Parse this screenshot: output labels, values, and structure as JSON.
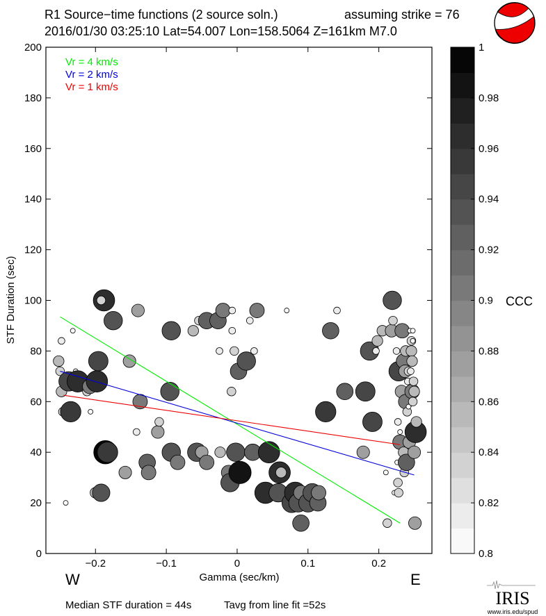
{
  "header": {
    "title": "R1 Source−time functions (2 source soln.)",
    "strike": "assuming strike = 76",
    "event": "2016/01/30 03:25:10  Lat=54.007 Lon=158.5064  Z=161km  M7.0"
  },
  "footer": {
    "median": "Median STF duration = 44s",
    "tavg": "Tavg from line fit =52s",
    "logo_text": "IRIS",
    "logo_url": "www.iris.edu/spud"
  },
  "direction_labels": {
    "west": "W",
    "east": "E"
  },
  "colors": {
    "vr4": "#00ee00",
    "vr2": "#0000dd",
    "vr1": "#ee0000",
    "beachball": "#ee0000"
  },
  "chart_data": {
    "type": "scatter",
    "title": "R1 Source−time functions (2 source soln.)",
    "xlabel": "Gamma (sec/km)",
    "ylabel": "STF Duration (sec)",
    "xlim": [
      -0.27,
      0.275
    ],
    "ylim": [
      0,
      200
    ],
    "xticks": [
      -0.2,
      -0.1,
      0,
      0.1,
      0.2
    ],
    "xtick_labels": [
      "−0.2",
      "−0.1",
      "0",
      "0.1",
      "0.2"
    ],
    "yticks": [
      0,
      20,
      40,
      60,
      80,
      100,
      120,
      140,
      160,
      180,
      200
    ],
    "ytick_labels": [
      "0",
      "20",
      "40",
      "60",
      "80",
      "100",
      "120",
      "140",
      "160",
      "180",
      "200"
    ],
    "legend": [
      {
        "label": "Vr = 4 km/s",
        "color": "#00ee00"
      },
      {
        "label": "Vr = 2 km/s",
        "color": "#0000dd"
      },
      {
        "label": "Vr = 1 km/s",
        "color": "#ee0000"
      }
    ],
    "fit_lines": [
      {
        "name": "Vr = 4 km/s",
        "color": "#00ee00",
        "x": [
          -0.25,
          0.23
        ],
        "y": [
          93.5,
          12
        ]
      },
      {
        "name": "Vr = 2 km/s",
        "color": "#0000dd",
        "x": [
          -0.25,
          0.25
        ],
        "y": [
          72,
          31
        ]
      },
      {
        "name": "Vr = 1 km/s",
        "color": "#ee0000",
        "x": [
          -0.245,
          0.23
        ],
        "y": [
          62.5,
          43
        ]
      }
    ],
    "colorbar": {
      "label": "CCC",
      "min": 0.8,
      "max": 1.0,
      "ticks": [
        0.8,
        0.82,
        0.84,
        0.86,
        0.88,
        0.9,
        0.92,
        0.94,
        0.96,
        0.98,
        1
      ],
      "tick_labels": [
        "0.8",
        "0.82",
        "0.84",
        "0.86",
        "0.88",
        "0.9",
        "0.92",
        "0.94",
        "0.96",
        "0.98",
        "1"
      ]
    },
    "points": [
      {
        "x": -0.242,
        "y": 20,
        "ccc": 0.8
      },
      {
        "x": -0.232,
        "y": 88,
        "ccc": 0.8
      },
      {
        "x": -0.248,
        "y": 84,
        "ccc": 0.82
      },
      {
        "x": -0.252,
        "y": 76,
        "ccc": 0.86
      },
      {
        "x": -0.25,
        "y": 72,
        "ccc": 0.84
      },
      {
        "x": -0.248,
        "y": 64,
        "ccc": 0.86
      },
      {
        "x": -0.246,
        "y": 56,
        "ccc": 0.84
      },
      {
        "x": -0.238,
        "y": 68,
        "ccc": 0.95
      },
      {
        "x": -0.235,
        "y": 56,
        "ccc": 0.96
      },
      {
        "x": -0.228,
        "y": 72,
        "ccc": 0.8
      },
      {
        "x": -0.225,
        "y": 68,
        "ccc": 0.97
      },
      {
        "x": -0.212,
        "y": 64,
        "ccc": 0.84
      },
      {
        "x": -0.208,
        "y": 66,
        "ccc": 0.9
      },
      {
        "x": -0.207,
        "y": 56,
        "ccc": 0.8
      },
      {
        "x": -0.2,
        "y": 24,
        "ccc": 0.86
      },
      {
        "x": -0.198,
        "y": 68,
        "ccc": 0.97
      },
      {
        "x": -0.196,
        "y": 76,
        "ccc": 0.95
      },
      {
        "x": -0.192,
        "y": 24,
        "ccc": 0.93
      },
      {
        "x": -0.188,
        "y": 100,
        "ccc": 0.97
      },
      {
        "x": -0.192,
        "y": 100,
        "ccc": 0.84
      },
      {
        "x": -0.186,
        "y": 40,
        "ccc": 0.99
      },
      {
        "x": -0.183,
        "y": 40,
        "ccc": 0.96
      },
      {
        "x": -0.175,
        "y": 92,
        "ccc": 0.94
      },
      {
        "x": -0.158,
        "y": 32,
        "ccc": 0.88
      },
      {
        "x": -0.152,
        "y": 76,
        "ccc": 0.88
      },
      {
        "x": -0.142,
        "y": 48,
        "ccc": 0.82
      },
      {
        "x": -0.14,
        "y": 96,
        "ccc": 0.88
      },
      {
        "x": -0.137,
        "y": 60,
        "ccc": 0.9
      },
      {
        "x": -0.127,
        "y": 36,
        "ccc": 0.92
      },
      {
        "x": -0.125,
        "y": 32,
        "ccc": 0.9
      },
      {
        "x": -0.112,
        "y": 48,
        "ccc": 0.88
      },
      {
        "x": -0.11,
        "y": 52,
        "ccc": 0.84
      },
      {
        "x": -0.095,
        "y": 64,
        "ccc": 0.94
      },
      {
        "x": -0.093,
        "y": 88,
        "ccc": 0.94
      },
      {
        "x": -0.093,
        "y": 40,
        "ccc": 0.94
      },
      {
        "x": -0.084,
        "y": 36,
        "ccc": 0.9
      },
      {
        "x": -0.062,
        "y": 88,
        "ccc": 0.86
      },
      {
        "x": -0.057,
        "y": 40,
        "ccc": 0.94
      },
      {
        "x": -0.054,
        "y": 92,
        "ccc": 0.84
      },
      {
        "x": -0.05,
        "y": 40,
        "ccc": 0.88
      },
      {
        "x": -0.043,
        "y": 36,
        "ccc": 0.9
      },
      {
        "x": -0.043,
        "y": 92,
        "ccc": 0.92
      },
      {
        "x": -0.03,
        "y": 92,
        "ccc": 0.84
      },
      {
        "x": -0.027,
        "y": 92,
        "ccc": 0.92
      },
      {
        "x": -0.025,
        "y": 80,
        "ccc": 0.82
      },
      {
        "x": -0.024,
        "y": 40,
        "ccc": 0.86
      },
      {
        "x": -0.02,
        "y": 96,
        "ccc": 0.9
      },
      {
        "x": -0.012,
        "y": 32,
        "ccc": 0.9
      },
      {
        "x": -0.01,
        "y": 28,
        "ccc": 0.94
      },
      {
        "x": -0.008,
        "y": 64,
        "ccc": 0.84
      },
      {
        "x": -0.007,
        "y": 96,
        "ccc": 0.82
      },
      {
        "x": -0.007,
        "y": 88,
        "ccc": 0.82
      },
      {
        "x": -0.004,
        "y": 80,
        "ccc": 0.84
      },
      {
        "x": -0.002,
        "y": 40,
        "ccc": 0.94
      },
      {
        "x": 0.002,
        "y": 72,
        "ccc": 0.92
      },
      {
        "x": 0.004,
        "y": 32,
        "ccc": 0.98
      },
      {
        "x": 0.013,
        "y": 76,
        "ccc": 0.94
      },
      {
        "x": 0.018,
        "y": 92,
        "ccc": 0.82
      },
      {
        "x": 0.022,
        "y": 40,
        "ccc": 0.92
      },
      {
        "x": 0.024,
        "y": 80,
        "ccc": 0.82
      },
      {
        "x": 0.028,
        "y": 96,
        "ccc": 0.9
      },
      {
        "x": 0.04,
        "y": 24,
        "ccc": 0.97
      },
      {
        "x": 0.045,
        "y": 40,
        "ccc": 0.97
      },
      {
        "x": 0.058,
        "y": 24,
        "ccc": 0.94
      },
      {
        "x": 0.06,
        "y": 32,
        "ccc": 0.97
      },
      {
        "x": 0.062,
        "y": 32,
        "ccc": 0.86
      },
      {
        "x": 0.07,
        "y": 96,
        "ccc": 0.8
      },
      {
        "x": 0.077,
        "y": 20,
        "ccc": 0.95
      },
      {
        "x": 0.082,
        "y": 24,
        "ccc": 0.97
      },
      {
        "x": 0.086,
        "y": 20,
        "ccc": 0.94
      },
      {
        "x": 0.09,
        "y": 24,
        "ccc": 0.9
      },
      {
        "x": 0.09,
        "y": 12,
        "ccc": 0.92
      },
      {
        "x": 0.1,
        "y": 20,
        "ccc": 0.94
      },
      {
        "x": 0.106,
        "y": 24,
        "ccc": 0.94
      },
      {
        "x": 0.114,
        "y": 20,
        "ccc": 0.92
      },
      {
        "x": 0.115,
        "y": 24,
        "ccc": 0.9
      },
      {
        "x": 0.125,
        "y": 56,
        "ccc": 0.96
      },
      {
        "x": 0.141,
        "y": 96,
        "ccc": 0.82
      },
      {
        "x": 0.132,
        "y": 88,
        "ccc": 0.92
      },
      {
        "x": 0.152,
        "y": 64,
        "ccc": 0.92
      },
      {
        "x": 0.178,
        "y": 40,
        "ccc": 0.88
      },
      {
        "x": 0.181,
        "y": 64,
        "ccc": 0.95
      },
      {
        "x": 0.187,
        "y": 80,
        "ccc": 0.94
      },
      {
        "x": 0.191,
        "y": 52,
        "ccc": 0.95
      },
      {
        "x": 0.196,
        "y": 80,
        "ccc": 0.82
      },
      {
        "x": 0.198,
        "y": 84,
        "ccc": 0.86
      },
      {
        "x": 0.205,
        "y": 88,
        "ccc": 0.86
      },
      {
        "x": 0.212,
        "y": 12,
        "ccc": 0.84
      },
      {
        "x": 0.21,
        "y": 32,
        "ccc": 0.8
      },
      {
        "x": 0.219,
        "y": 100,
        "ccc": 0.94
      },
      {
        "x": 0.218,
        "y": 88,
        "ccc": 0.88
      },
      {
        "x": 0.22,
        "y": 92,
        "ccc": 0.84
      },
      {
        "x": 0.222,
        "y": 24,
        "ccc": 0.8
      },
      {
        "x": 0.225,
        "y": 80,
        "ccc": 0.82
      },
      {
        "x": 0.227,
        "y": 28,
        "ccc": 0.84
      },
      {
        "x": 0.228,
        "y": 24,
        "ccc": 0.84
      },
      {
        "x": 0.226,
        "y": 36,
        "ccc": 0.8
      },
      {
        "x": 0.227,
        "y": 52,
        "ccc": 0.82
      },
      {
        "x": 0.23,
        "y": 48,
        "ccc": 0.8
      },
      {
        "x": 0.228,
        "y": 72,
        "ccc": 0.95
      },
      {
        "x": 0.23,
        "y": 44,
        "ccc": 0.9
      },
      {
        "x": 0.232,
        "y": 64,
        "ccc": 0.88
      },
      {
        "x": 0.233,
        "y": 88,
        "ccc": 0.9
      },
      {
        "x": 0.235,
        "y": 76,
        "ccc": 0.9
      },
      {
        "x": 0.235,
        "y": 40,
        "ccc": 0.86
      },
      {
        "x": 0.236,
        "y": 32,
        "ccc": 0.84
      },
      {
        "x": 0.237,
        "y": 72,
        "ccc": 0.88
      },
      {
        "x": 0.238,
        "y": 60,
        "ccc": 0.9
      },
      {
        "x": 0.238,
        "y": 80,
        "ccc": 0.86
      },
      {
        "x": 0.239,
        "y": 36,
        "ccc": 0.92
      },
      {
        "x": 0.24,
        "y": 56,
        "ccc": 0.84
      },
      {
        "x": 0.241,
        "y": 68,
        "ccc": 0.82
      },
      {
        "x": 0.242,
        "y": 72,
        "ccc": 0.84
      },
      {
        "x": 0.243,
        "y": 44,
        "ccc": 0.88
      },
      {
        "x": 0.242,
        "y": 58,
        "ccc": 0.8
      },
      {
        "x": 0.244,
        "y": 88,
        "ccc": 0.8
      },
      {
        "x": 0.245,
        "y": 72,
        "ccc": 0.82
      },
      {
        "x": 0.246,
        "y": 84,
        "ccc": 0.84
      },
      {
        "x": 0.246,
        "y": 80,
        "ccc": 0.86
      },
      {
        "x": 0.247,
        "y": 76,
        "ccc": 0.86
      },
      {
        "x": 0.247,
        "y": 64,
        "ccc": 0.9
      },
      {
        "x": 0.248,
        "y": 88,
        "ccc": 0.8
      },
      {
        "x": 0.248,
        "y": 84,
        "ccc": 0.8
      },
      {
        "x": 0.248,
        "y": 60,
        "ccc": 0.84
      },
      {
        "x": 0.249,
        "y": 68,
        "ccc": 0.84
      },
      {
        "x": 0.25,
        "y": 40,
        "ccc": 0.88
      },
      {
        "x": 0.25,
        "y": 64,
        "ccc": 0.86
      },
      {
        "x": 0.251,
        "y": 12,
        "ccc": 0.88
      },
      {
        "x": 0.252,
        "y": 48,
        "ccc": 0.97
      },
      {
        "x": 0.253,
        "y": 52,
        "ccc": 0.86
      }
    ]
  }
}
